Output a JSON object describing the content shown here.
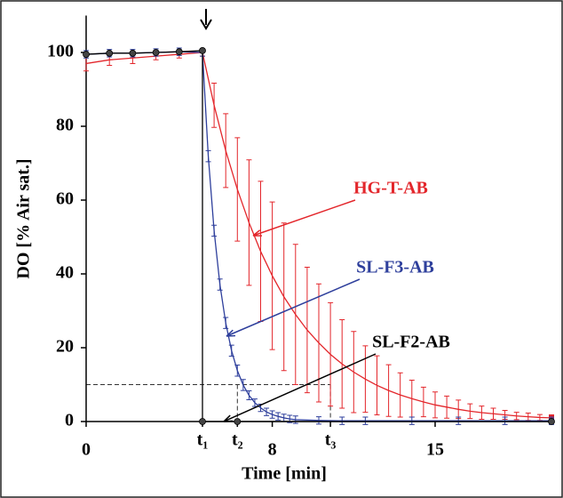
{
  "chart_data": {
    "type": "line",
    "xlabel": "Time [min]",
    "ylabel": "DO [% Air sat.]",
    "xlim": [
      0,
      20
    ],
    "ylim": [
      0,
      110
    ],
    "xticks": [
      0,
      {
        "value": 5,
        "label": "t₁"
      },
      {
        "value": 6.5,
        "label": "t₂"
      },
      8,
      {
        "value": 10.5,
        "label": "t₃"
      },
      15
    ],
    "yticks": [
      0,
      20,
      40,
      60,
      80,
      100
    ],
    "threshold": 10,
    "series": [
      {
        "name": "HG-T-AB",
        "color": "#e3262b",
        "x": [
          0,
          1,
          2,
          3,
          4,
          5,
          5.5,
          6,
          6.5,
          7,
          7.5,
          8,
          8.5,
          9,
          9.5,
          10,
          10.5,
          11,
          11.5,
          12,
          12.5,
          13,
          13.5,
          14,
          14.5,
          15,
          15.5,
          16,
          16.5,
          17,
          17.5,
          18,
          18.5,
          19,
          19.5,
          20
        ],
        "values": [
          97,
          98,
          98.5,
          99,
          99.5,
          100,
          85.7,
          73.4,
          62.9,
          53.9,
          46.1,
          39.5,
          33.8,
          29.0,
          24.8,
          21.3,
          18.2,
          15.6,
          13.4,
          11.5,
          9.8,
          8.4,
          7.2,
          6.2,
          5.3,
          4.5,
          3.9,
          3.3,
          2.8,
          2.4,
          2.1,
          1.8,
          1.5,
          1.3,
          1.1,
          1.0
        ],
        "errors": [
          2,
          1.5,
          1.5,
          1,
          1,
          1,
          6,
          10,
          14,
          17,
          19,
          20,
          20,
          19,
          17,
          16,
          14,
          12,
          11,
          9,
          8,
          7,
          6,
          5,
          4,
          3.5,
          3,
          2.5,
          2,
          1.8,
          1.5,
          1.2,
          1,
          1,
          0.8,
          0.8
        ]
      },
      {
        "name": "SL-F3-AB",
        "color": "#2e3f9c",
        "x": [
          0,
          1,
          2,
          3,
          4,
          5,
          5.25,
          5.5,
          5.75,
          6,
          6.25,
          6.5,
          6.75,
          7,
          7.25,
          7.5,
          7.75,
          8,
          8.25,
          8.5,
          8.75,
          9,
          10,
          11,
          12,
          14,
          16,
          18,
          20
        ],
        "values": [
          99.5,
          99.8,
          99.8,
          100,
          100.2,
          100,
          71.9,
          51.7,
          37.1,
          26.7,
          19.2,
          13.8,
          9.9,
          7.1,
          5.1,
          3.7,
          2.6,
          1.9,
          1.4,
          1.0,
          0.7,
          0.5,
          0.3,
          0.2,
          0.2,
          0.2,
          0.2,
          0.2,
          0.2
        ],
        "errors": [
          1,
          1,
          1,
          1,
          1,
          1,
          1.5,
          1.5,
          1.5,
          1.5,
          1.5,
          1.5,
          1.5,
          1.2,
          1,
          1,
          1,
          1,
          1,
          1,
          1,
          1,
          1,
          1,
          1,
          1,
          1,
          1,
          1
        ]
      },
      {
        "name": "SL-F2-AB",
        "color": "#000000",
        "x": [
          0,
          1,
          2,
          3,
          4,
          5,
          5,
          6.5,
          20
        ],
        "values": [
          99.5,
          99.8,
          99.8,
          100,
          100.2,
          100.5,
          0,
          0,
          0
        ]
      }
    ]
  }
}
